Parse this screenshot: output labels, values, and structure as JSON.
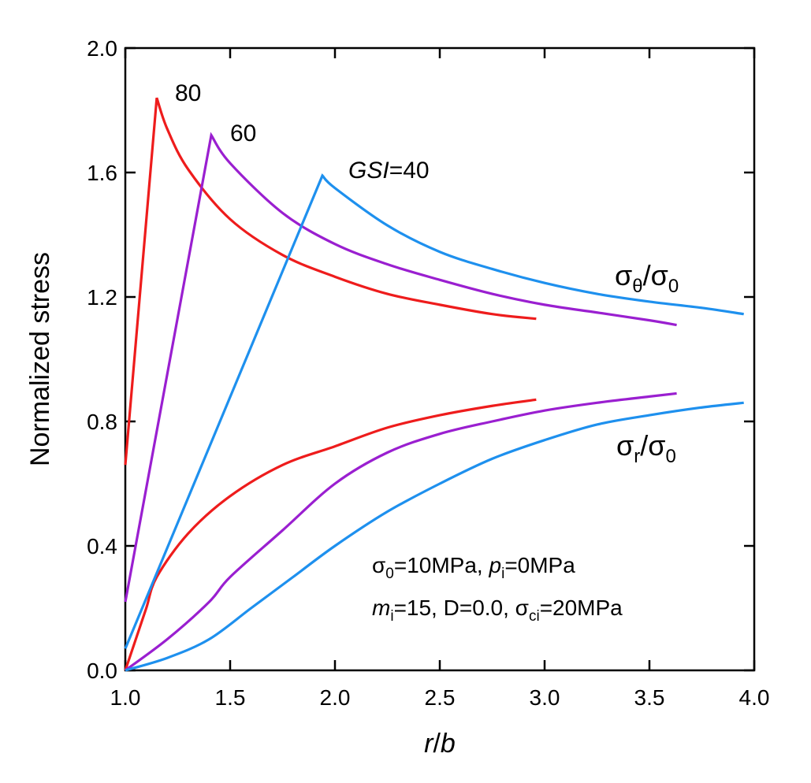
{
  "chart_data": {
    "type": "line",
    "xlabel": {
      "italic1": "r",
      "sep": "/",
      "italic2": "b"
    },
    "ylabel": "Normalized stress",
    "xlim": [
      1.0,
      4.0
    ],
    "ylim": [
      0.0,
      2.0
    ],
    "xticks": [
      "1.0",
      "1.5",
      "2.0",
      "2.5",
      "3.0",
      "3.5",
      "4.0"
    ],
    "yticks": [
      "0.0",
      "0.4",
      "0.8",
      "1.2",
      "1.6",
      "2.0"
    ],
    "grid": false,
    "colors": {
      "GSI80": "#ee1c1c",
      "GSI60": "#9a1fd0",
      "GSI40": "#1e90ee"
    },
    "series": [
      {
        "name": "80",
        "curves": {
          "sigma_theta": [
            [
              1.0,
              0.66
            ],
            [
              1.15,
              1.84
            ],
            [
              1.2,
              1.74
            ],
            [
              1.3,
              1.61
            ],
            [
              1.5,
              1.45
            ],
            [
              1.75,
              1.335
            ],
            [
              2.0,
              1.265
            ],
            [
              2.25,
              1.21
            ],
            [
              2.5,
              1.175
            ],
            [
              2.75,
              1.145
            ],
            [
              2.96,
              1.13
            ]
          ],
          "sigma_r": [
            [
              1.0,
              0.0
            ],
            [
              1.05,
              0.1
            ],
            [
              1.1,
              0.2
            ],
            [
              1.15,
              0.3
            ],
            [
              1.3,
              0.44
            ],
            [
              1.5,
              0.56
            ],
            [
              1.75,
              0.66
            ],
            [
              2.0,
              0.72
            ],
            [
              2.25,
              0.78
            ],
            [
              2.5,
              0.82
            ],
            [
              2.75,
              0.85
            ],
            [
              2.96,
              0.87
            ]
          ]
        }
      },
      {
        "name": "60",
        "curves": {
          "sigma_theta": [
            [
              1.0,
              0.22
            ],
            [
              1.41,
              1.72
            ],
            [
              1.5,
              1.63
            ],
            [
              1.75,
              1.47
            ],
            [
              2.0,
              1.37
            ],
            [
              2.25,
              1.305
            ],
            [
              2.5,
              1.255
            ],
            [
              2.75,
              1.21
            ],
            [
              3.0,
              1.175
            ],
            [
              3.25,
              1.15
            ],
            [
              3.5,
              1.125
            ],
            [
              3.63,
              1.11
            ]
          ],
          "sigma_r": [
            [
              1.0,
              0.0
            ],
            [
              1.2,
              0.1
            ],
            [
              1.4,
              0.22
            ],
            [
              1.5,
              0.3
            ],
            [
              1.75,
              0.45
            ],
            [
              2.0,
              0.6
            ],
            [
              2.25,
              0.7
            ],
            [
              2.5,
              0.76
            ],
            [
              2.75,
              0.8
            ],
            [
              3.0,
              0.835
            ],
            [
              3.25,
              0.86
            ],
            [
              3.5,
              0.88
            ],
            [
              3.63,
              0.89
            ]
          ]
        }
      },
      {
        "name": "GSI=40",
        "curves": {
          "sigma_theta": [
            [
              1.0,
              0.07
            ],
            [
              1.94,
              1.59
            ],
            [
              2.0,
              1.55
            ],
            [
              2.25,
              1.43
            ],
            [
              2.5,
              1.345
            ],
            [
              2.75,
              1.29
            ],
            [
              3.0,
              1.245
            ],
            [
              3.25,
              1.21
            ],
            [
              3.5,
              1.185
            ],
            [
              3.75,
              1.165
            ],
            [
              3.95,
              1.145
            ]
          ],
          "sigma_r": [
            [
              1.0,
              0.0
            ],
            [
              1.2,
              0.04
            ],
            [
              1.4,
              0.1
            ],
            [
              1.6,
              0.2
            ],
            [
              1.8,
              0.3
            ],
            [
              2.0,
              0.4
            ],
            [
              2.25,
              0.51
            ],
            [
              2.5,
              0.6
            ],
            [
              2.75,
              0.68
            ],
            [
              3.0,
              0.74
            ],
            [
              3.25,
              0.79
            ],
            [
              3.5,
              0.82
            ],
            [
              3.75,
              0.845
            ],
            [
              3.95,
              0.86
            ]
          ]
        }
      }
    ],
    "annotations": {
      "sigma_theta_label": {
        "main": "σ",
        "sub1": "θ",
        "mid": "/σ",
        "sub2": "0"
      },
      "sigma_r_label": {
        "main": "σ",
        "sub1": "r",
        "mid": "/σ",
        "sub2": "0"
      },
      "params_line1": {
        "s0": "σ",
        "s0_sub": "0",
        "s0_val": "=10MPa, ",
        "p": "p",
        "p_sub": "i",
        "p_val": "=0MPa"
      },
      "params_line2": {
        "m": "m",
        "m_sub": "i",
        "m_val": "=15, D=0.0, ",
        "sci": "σ",
        "sci_sub": "ci",
        "sci_val": "=20MPa"
      },
      "gsi_label": {
        "italic": "GSI",
        "rest": "=40"
      }
    }
  }
}
